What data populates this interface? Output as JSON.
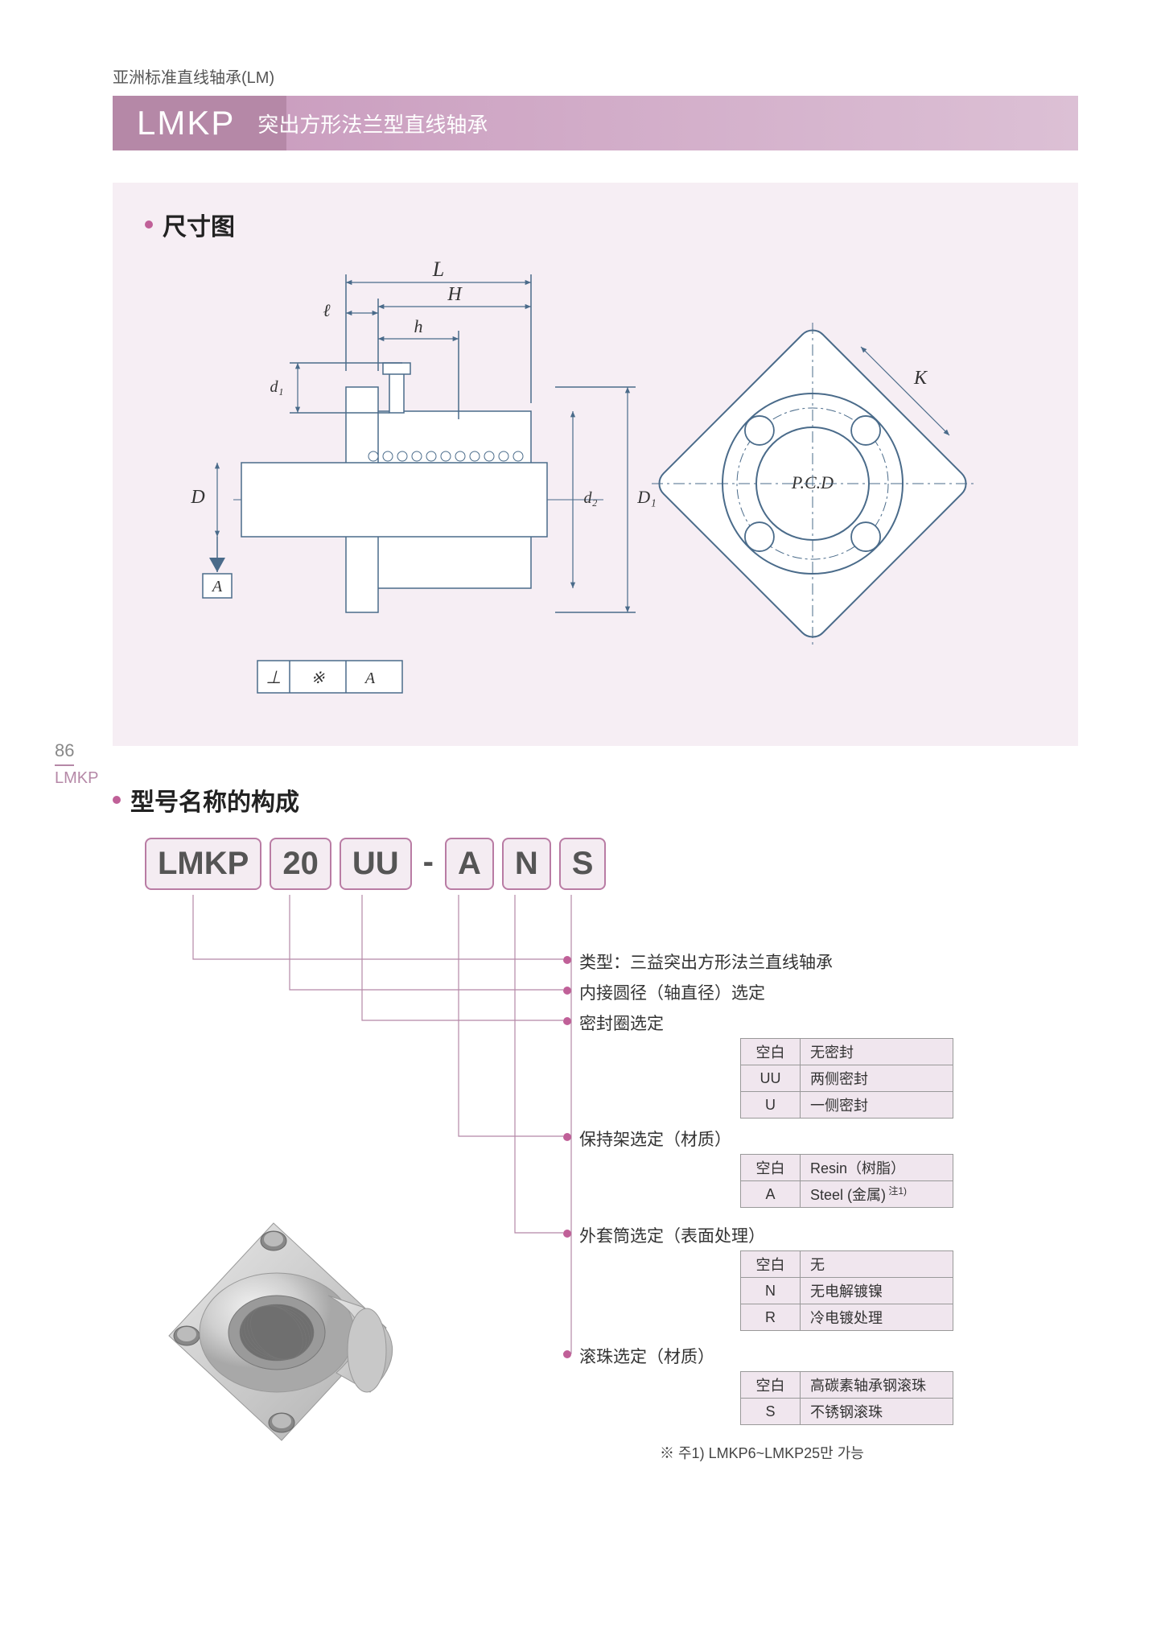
{
  "breadcrumb": "亚洲标准直线轴承(LM)",
  "header": {
    "code": "LMKP",
    "desc": "突出方形法兰型直线轴承"
  },
  "section1_title": "尺寸图",
  "section2_title": "型号名称的构成",
  "page_num": "86",
  "page_label": "LMKP",
  "diagram": {
    "bg": "#f6eef4",
    "line": "#4a6b8a",
    "thin": 1.5,
    "labels": {
      "L": "L",
      "H": "H",
      "h": "h",
      "l": "ℓ",
      "d1": "d₁",
      "d2": "d₂",
      "D": "D",
      "D1": "D₁",
      "A": "A",
      "K": "K",
      "PCD": "P.C.D",
      "datum": "⌖ | ※ | A"
    }
  },
  "code_parts": [
    "LMKP",
    "20",
    "UU",
    "-",
    "A",
    "N",
    "S"
  ],
  "legend": [
    {
      "text": "类型：三益突出方形法兰直线轴承"
    },
    {
      "text": "内接圆径（轴直径）选定"
    },
    {
      "text": "密封圈选定",
      "table": [
        [
          "空白",
          "无密封"
        ],
        [
          "UU",
          "两侧密封"
        ],
        [
          "U",
          "一侧密封"
        ]
      ]
    },
    {
      "text": "保持架选定（材质）",
      "table": [
        [
          "空白",
          "Resin（树脂）"
        ],
        [
          "A",
          "Steel (金属)<sup style='font-size:12px'> 注1)</sup>"
        ]
      ]
    },
    {
      "text": "外套筒选定（表面处理）",
      "table": [
        [
          "空白",
          "无"
        ],
        [
          "N",
          "无电解镀镍"
        ],
        [
          "R",
          "冷电镀处理"
        ]
      ]
    },
    {
      "text": "滚珠选定（材质）",
      "table": [
        [
          "空白",
          "高碳素轴承钢滚珠"
        ],
        [
          "S",
          "不锈钢滚珠"
        ]
      ]
    }
  ],
  "footnote": "※ 주1) LMKP6~LMKP25만 가능",
  "colors": {
    "accent": "#c06098",
    "band": "#b588a7",
    "box_border": "#b97ca4",
    "box_bg": "#f4ecf2"
  }
}
